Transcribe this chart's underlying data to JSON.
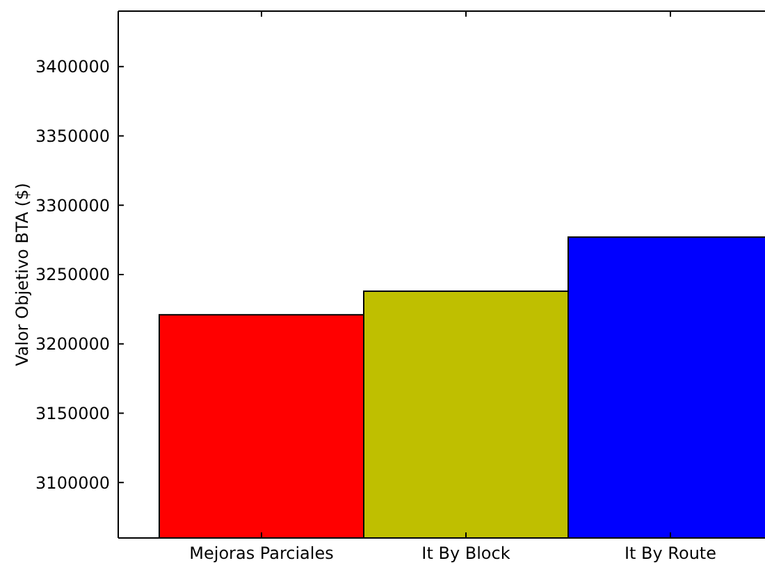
{
  "chart_data": {
    "type": "bar",
    "ylabel": "Valor Objetivo BTA ($)",
    "categories": [
      "Mejoras Parciales",
      "It By Block",
      "It By Route"
    ],
    "values": [
      3221000,
      3238000,
      3277000
    ],
    "colors": [
      "#ff0000",
      "#bfbf00",
      "#0000ff"
    ],
    "ylim": [
      3060000,
      3440000
    ],
    "yticks": [
      3100000,
      3150000,
      3200000,
      3250000,
      3300000,
      3350000,
      3400000
    ]
  }
}
